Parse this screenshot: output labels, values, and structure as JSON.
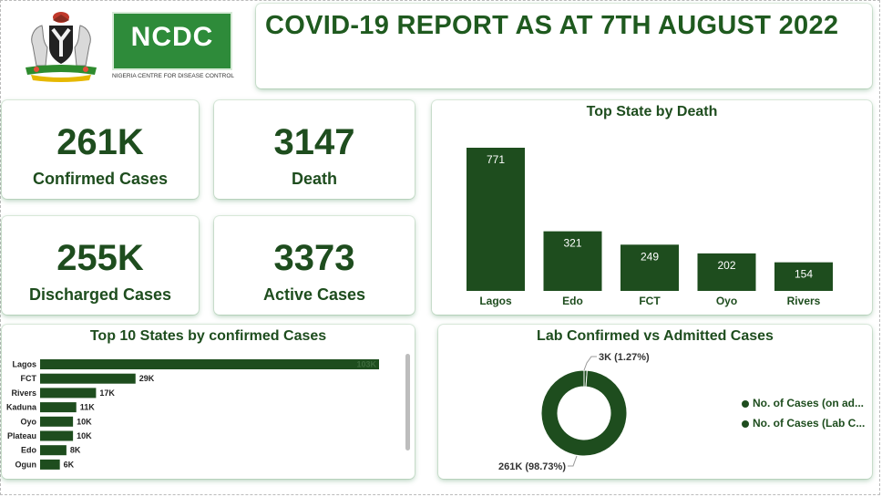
{
  "header": {
    "title": "COVID-19 REPORT AS AT 7TH AUGUST 2022",
    "ncdc_logo_text": "NCDC",
    "ncdc_subtitle": "NIGERIA CENTRE FOR DISEASE CONTROL",
    "brand_color": "#1f5a1f"
  },
  "kpis": [
    {
      "value": "261K",
      "label": "Confirmed Cases"
    },
    {
      "value": "3147",
      "label": "Death"
    },
    {
      "value": "255K",
      "label": "Discharged Cases"
    },
    {
      "value": "3373",
      "label": "Active Cases"
    }
  ],
  "chart_data": [
    {
      "type": "bar",
      "title": "Top State by Death",
      "categories": [
        "Lagos",
        "Edo",
        "FCT",
        "Oyo",
        "Rivers"
      ],
      "values": [
        771,
        321,
        249,
        202,
        154
      ],
      "data_labels": [
        "771",
        "321",
        "249",
        "202",
        "154"
      ],
      "bar_color": "#1e4d1e"
    },
    {
      "type": "bar",
      "orientation": "horizontal",
      "title": "Top 10 States by confirmed Cases",
      "categories": [
        "Lagos",
        "FCT",
        "Rivers",
        "Kaduna",
        "Oyo",
        "Plateau",
        "Edo",
        "Ogun"
      ],
      "values": [
        103000,
        29000,
        17000,
        11000,
        10000,
        10000,
        8000,
        6000
      ],
      "data_labels": [
        "103K",
        "29K",
        "17K",
        "11K",
        "10K",
        "10K",
        "8K",
        "6K"
      ],
      "bar_color": "#1e4d1e"
    },
    {
      "type": "pie",
      "donut": true,
      "title": "Lab Confirmed vs Admitted Cases",
      "slices": [
        {
          "name": "No. of Cases (on ad...",
          "value": 3000,
          "percent": 1.27,
          "label": "3K (1.27%)"
        },
        {
          "name": "No. of Cases (Lab C...",
          "value": 261000,
          "percent": 98.73,
          "label": "261K (98.73%)"
        }
      ],
      "colors": [
        "#1e4d1e",
        "#1e4d1e"
      ],
      "legend_placement": "right"
    }
  ]
}
